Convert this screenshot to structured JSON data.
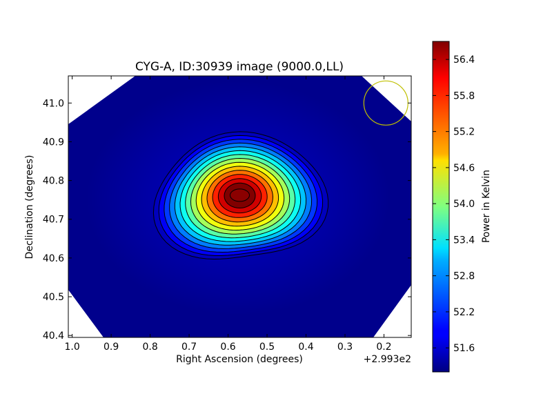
{
  "chart_data": {
    "type": "heatmap",
    "title": "CYG-A, ID:30939 image (9000.0,LL)",
    "xlabel": "Right Ascension (degrees)",
    "ylabel": "Declination (degrees)",
    "x_offset_label": "+2.993e2",
    "x_ticks": [
      "1.0",
      "0.9",
      "0.8",
      "0.7",
      "0.6",
      "0.5",
      "0.4",
      "0.3",
      "0.2"
    ],
    "y_ticks": [
      "40.4",
      "40.5",
      "40.6",
      "40.7",
      "40.8",
      "40.9",
      "41.0"
    ],
    "xlim": [
      1.01,
      0.13
    ],
    "ylim": [
      40.395,
      41.07
    ],
    "colorbar": {
      "label": "Power in Kelvin",
      "range": [
        51.2,
        56.7
      ],
      "ticks": [
        "51.6",
        "52.2",
        "52.8",
        "53.4",
        "54.0",
        "54.6",
        "55.2",
        "55.8",
        "56.4"
      ],
      "colormap": "jet"
    },
    "peak": {
      "ra": 0.57,
      "dec": 40.762,
      "value": 56.6
    },
    "background_value": 51.25,
    "contour_count": 14,
    "beam_marker": {
      "ra": 0.195,
      "dec": 41.0,
      "color": "#bfbf00"
    },
    "grid": false
  }
}
